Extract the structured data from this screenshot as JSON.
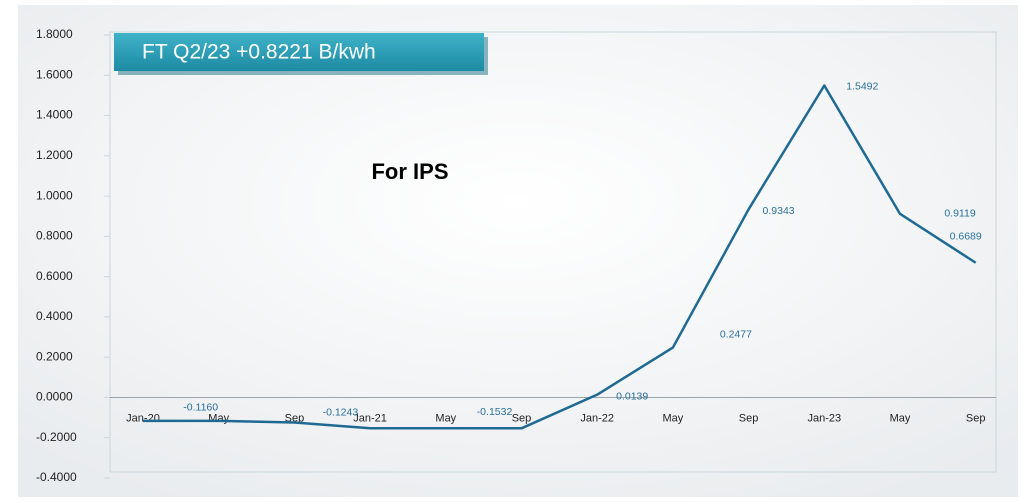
{
  "chart_data": {
    "type": "line",
    "title": "FT Q2/23 +0.8221 B/kwh",
    "annotation": "For IPS",
    "categories": [
      "Jan-20",
      "May",
      "Sep",
      "Jan-21",
      "May",
      "Sep",
      "Jan-22",
      "May",
      "Sep",
      "Jan-23",
      "May",
      "Sep"
    ],
    "series": [
      {
        "name": "FT",
        "color": "#1f6a93",
        "values": [
          -0.116,
          -0.116,
          -0.1243,
          -0.1532,
          -0.1532,
          -0.1532,
          0.0139,
          0.2477,
          0.9343,
          1.5492,
          0.9119,
          0.6689
        ],
        "value_labels": [
          null,
          "-0.1160",
          "-0.1243",
          null,
          null,
          "-0.1532",
          "0.0139",
          "0.2477",
          "0.9343",
          "1.5492",
          "0.9119",
          "0.6689"
        ]
      }
    ],
    "ylim": [
      -0.4,
      1.8
    ],
    "yticks": [
      {
        "value": -0.4,
        "label": "-0.4000"
      },
      {
        "value": -0.2,
        "label": "-0.2000"
      },
      {
        "value": 0,
        "label": "0.0000"
      },
      {
        "value": 0.2,
        "label": "0.2000"
      },
      {
        "value": 0.4,
        "label": "0.4000"
      },
      {
        "value": 0.6,
        "label": "0.6000"
      },
      {
        "value": 0.8,
        "label": "0.8000"
      },
      {
        "value": 1.0,
        "label": "1.0000"
      },
      {
        "value": 1.2,
        "label": "1.2000"
      },
      {
        "value": 1.4,
        "label": "1.4000"
      },
      {
        "value": 1.6,
        "label": "1.6000"
      },
      {
        "value": 1.8,
        "label": "1.8000"
      }
    ]
  }
}
